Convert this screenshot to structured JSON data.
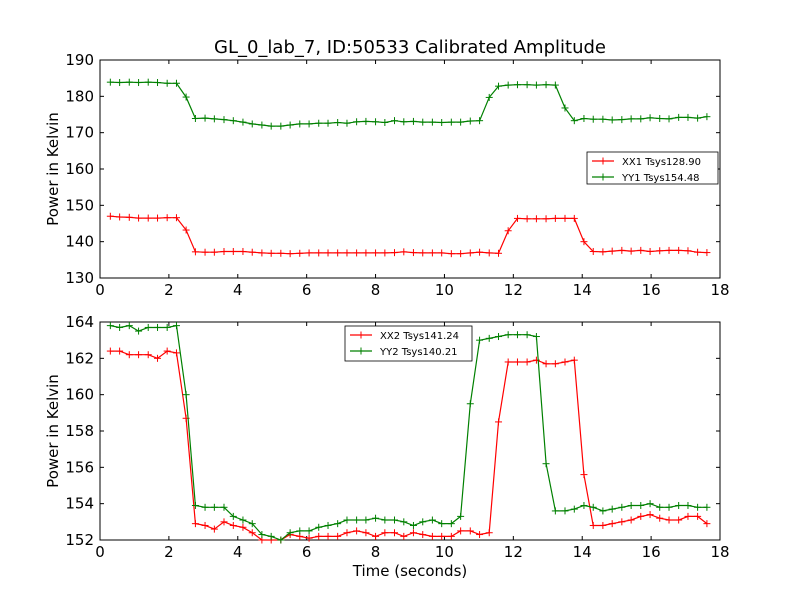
{
  "figure": {
    "title": "GL_0_lab_7, ID:50533 Calibrated Amplitude"
  },
  "chart_data": [
    {
      "type": "line",
      "title": "GL_0_lab_7, ID:50533 Calibrated Amplitude",
      "xlabel": "",
      "ylabel": "Power in Kelvin",
      "xlim": [
        0,
        18
      ],
      "ylim": [
        130,
        190
      ],
      "xticks": [
        0,
        2,
        4,
        6,
        8,
        10,
        12,
        14,
        16,
        18
      ],
      "yticks": [
        130,
        140,
        150,
        160,
        170,
        180,
        190
      ],
      "grid": false,
      "legend_position": "center-right",
      "x": [
        0.3,
        0.57,
        0.85,
        1.12,
        1.4,
        1.67,
        1.95,
        2.22,
        2.5,
        2.77,
        3.05,
        3.32,
        3.6,
        3.87,
        4.15,
        4.42,
        4.7,
        4.97,
        5.25,
        5.52,
        5.8,
        6.07,
        6.35,
        6.62,
        6.9,
        7.17,
        7.45,
        7.72,
        8.0,
        8.27,
        8.55,
        8.82,
        9.1,
        9.37,
        9.65,
        9.92,
        10.2,
        10.47,
        10.75,
        11.02,
        11.3,
        11.57,
        11.85,
        12.12,
        12.4,
        12.67,
        12.95,
        13.22,
        13.5,
        13.77,
        14.05,
        14.32,
        14.6,
        14.87,
        15.15,
        15.42,
        15.7,
        15.97,
        16.25,
        16.52,
        16.8,
        17.07,
        17.35,
        17.62
      ],
      "series": [
        {
          "name": "XX1 Tsys128.90",
          "color": "#ff0000",
          "values": [
            147.0,
            146.8,
            146.7,
            146.5,
            146.5,
            146.5,
            146.6,
            146.6,
            143.2,
            137.2,
            137.1,
            137.1,
            137.3,
            137.3,
            137.3,
            137.1,
            136.9,
            136.8,
            136.8,
            136.7,
            136.8,
            136.9,
            136.9,
            136.9,
            136.9,
            136.9,
            136.9,
            136.9,
            136.9,
            136.9,
            137.0,
            137.2,
            137.0,
            136.9,
            136.9,
            136.9,
            136.7,
            136.7,
            136.9,
            137.1,
            136.9,
            136.8,
            143.0,
            146.4,
            146.3,
            146.3,
            146.3,
            146.4,
            146.4,
            146.4,
            140.0,
            137.3,
            137.2,
            137.4,
            137.6,
            137.4,
            137.6,
            137.3,
            137.5,
            137.6,
            137.6,
            137.5,
            137.1,
            137.0
          ]
        },
        {
          "name": "YY1 Tsys154.48",
          "color": "#008000",
          "values": [
            183.9,
            183.8,
            183.9,
            183.8,
            183.9,
            183.8,
            183.6,
            183.6,
            179.8,
            173.9,
            174.0,
            173.8,
            173.6,
            173.3,
            172.9,
            172.4,
            172.1,
            171.8,
            171.8,
            172.1,
            172.4,
            172.4,
            172.6,
            172.6,
            172.8,
            172.6,
            173.0,
            173.1,
            173.0,
            172.8,
            173.3,
            173.0,
            173.1,
            172.9,
            172.9,
            172.8,
            172.9,
            172.9,
            173.2,
            173.3,
            179.7,
            182.8,
            183.1,
            183.2,
            183.2,
            183.1,
            183.2,
            183.1,
            176.8,
            173.3,
            173.9,
            173.7,
            173.7,
            173.5,
            173.6,
            173.8,
            173.8,
            174.1,
            173.9,
            173.8,
            174.2,
            174.2,
            174.0,
            174.4
          ]
        }
      ]
    },
    {
      "type": "line",
      "title": "",
      "xlabel": "Time (seconds)",
      "ylabel": "Power in Kelvin",
      "xlim": [
        0,
        18
      ],
      "ylim": [
        152,
        164
      ],
      "xticks": [
        0,
        2,
        4,
        6,
        8,
        10,
        12,
        14,
        16,
        18
      ],
      "yticks": [
        152,
        154,
        156,
        158,
        160,
        162,
        164
      ],
      "grid": false,
      "legend_position": "top-center",
      "x": [
        0.3,
        0.57,
        0.85,
        1.12,
        1.4,
        1.67,
        1.95,
        2.22,
        2.5,
        2.77,
        3.05,
        3.32,
        3.6,
        3.87,
        4.15,
        4.42,
        4.7,
        4.97,
        5.25,
        5.52,
        5.8,
        6.07,
        6.35,
        6.62,
        6.9,
        7.17,
        7.45,
        7.72,
        8.0,
        8.27,
        8.55,
        8.82,
        9.1,
        9.37,
        9.65,
        9.92,
        10.2,
        10.47,
        10.75,
        11.02,
        11.3,
        11.57,
        11.85,
        12.12,
        12.4,
        12.67,
        12.95,
        13.22,
        13.5,
        13.77,
        14.05,
        14.32,
        14.6,
        14.87,
        15.15,
        15.42,
        15.7,
        15.97,
        16.25,
        16.52,
        16.8,
        17.07,
        17.35,
        17.62
      ],
      "series": [
        {
          "name": "XX2 Tsys141.24",
          "color": "#ff0000",
          "values": [
            162.4,
            162.4,
            162.2,
            162.2,
            162.2,
            162.0,
            162.4,
            162.3,
            158.7,
            152.9,
            152.8,
            152.6,
            153.0,
            152.8,
            152.7,
            152.4,
            152.0,
            152.0,
            152.0,
            152.3,
            152.2,
            152.1,
            152.2,
            152.2,
            152.2,
            152.4,
            152.5,
            152.4,
            152.2,
            152.4,
            152.4,
            152.2,
            152.4,
            152.3,
            152.2,
            152.2,
            152.2,
            152.5,
            152.5,
            152.3,
            152.4,
            158.5,
            161.8,
            161.8,
            161.8,
            161.9,
            161.7,
            161.7,
            161.8,
            161.9,
            155.6,
            152.8,
            152.8,
            152.9,
            153.0,
            153.1,
            153.3,
            153.4,
            153.2,
            153.1,
            153.1,
            153.3,
            153.3,
            152.9
          ]
        },
        {
          "name": "YY2 Tsys140.21",
          "color": "#008000",
          "values": [
            163.8,
            163.7,
            163.8,
            163.5,
            163.7,
            163.7,
            163.7,
            163.8,
            160.0,
            153.9,
            153.8,
            153.8,
            153.8,
            153.3,
            153.1,
            152.9,
            152.3,
            152.2,
            152.0,
            152.4,
            152.5,
            152.5,
            152.7,
            152.8,
            152.9,
            153.1,
            153.1,
            153.1,
            153.2,
            153.1,
            153.1,
            153.0,
            152.8,
            153.0,
            153.1,
            152.9,
            152.9,
            153.3,
            159.5,
            163.0,
            163.1,
            163.2,
            163.3,
            163.3,
            163.3,
            163.2,
            156.2,
            153.6,
            153.6,
            153.7,
            153.9,
            153.8,
            153.6,
            153.7,
            153.8,
            153.9,
            153.9,
            154.0,
            153.8,
            153.8,
            153.9,
            153.9,
            153.8,
            153.8
          ]
        }
      ]
    }
  ]
}
